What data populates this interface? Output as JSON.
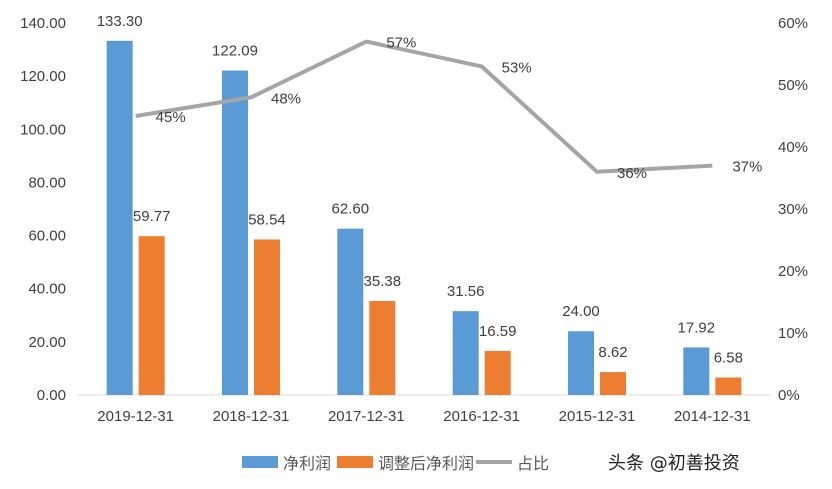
{
  "chart_data": {
    "type": "bar+line",
    "categories": [
      "2019-12-31",
      "2018-12-31",
      "2017-12-31",
      "2016-12-31",
      "2015-12-31",
      "2014-12-31"
    ],
    "series": [
      {
        "name": "净利润",
        "type": "bar",
        "axis": "left",
        "color": "#5B9BD5",
        "values": [
          133.3,
          122.09,
          62.6,
          31.56,
          24.0,
          17.92
        ],
        "labels": [
          "133.30",
          "122.09",
          "62.60",
          "31.56",
          "24.00",
          "17.92"
        ]
      },
      {
        "name": "调整后净利润",
        "type": "bar",
        "axis": "left",
        "color": "#ED7D31",
        "values": [
          59.77,
          58.54,
          35.38,
          16.59,
          8.62,
          6.58
        ],
        "labels": [
          "59.77",
          "58.54",
          "35.38",
          "16.59",
          "8.62",
          "6.58"
        ]
      },
      {
        "name": "占比",
        "type": "line",
        "axis": "right",
        "color": "#A5A5A5",
        "values": [
          45,
          48,
          57,
          53,
          36,
          37
        ],
        "labels": [
          "45%",
          "48%",
          "57%",
          "53%",
          "36%",
          "37%"
        ]
      }
    ],
    "left_axis": {
      "ylim": [
        0,
        140
      ],
      "ticks": [
        "0.00",
        "20.00",
        "40.00",
        "60.00",
        "80.00",
        "100.00",
        "120.00",
        "140.00"
      ]
    },
    "right_axis": {
      "ylim": [
        0,
        60
      ],
      "ticks": [
        "0%",
        "10%",
        "20%",
        "30%",
        "40%",
        "50%",
        "60%"
      ]
    },
    "grid": false,
    "legend": "bottom"
  },
  "watermark": "头条 @初善投资"
}
